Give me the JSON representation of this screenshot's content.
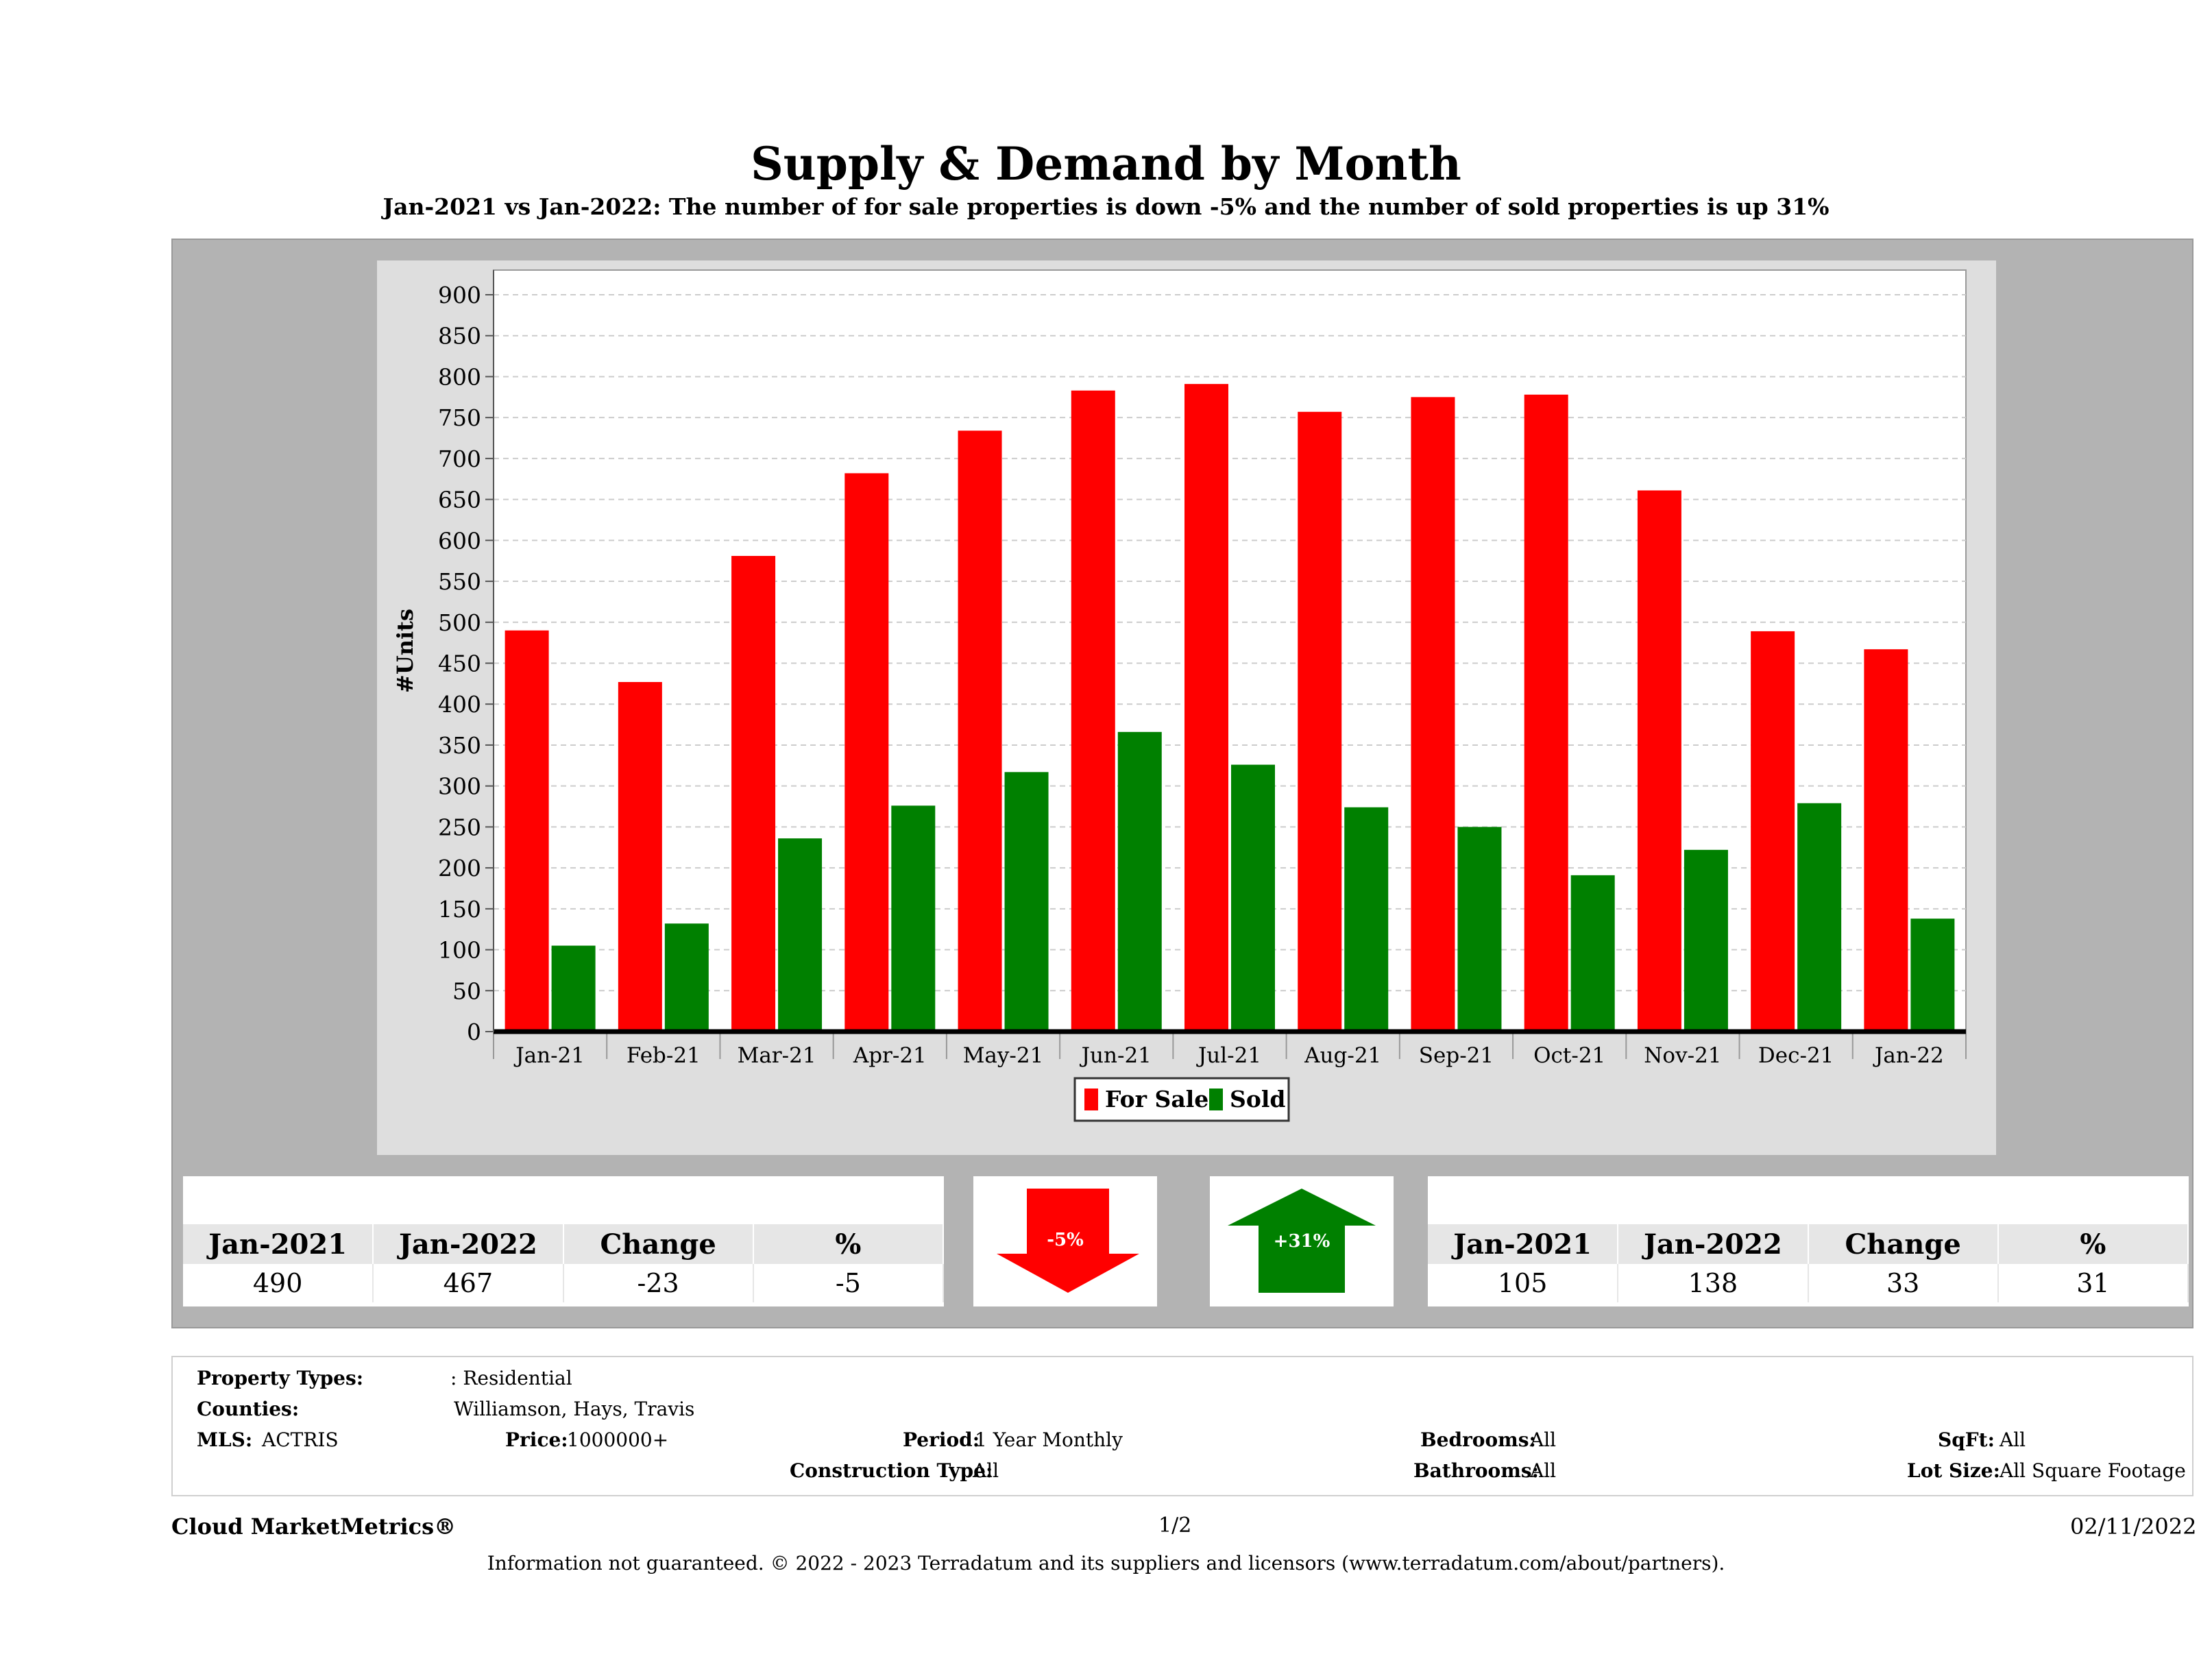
{
  "header": {
    "title": "Supply & Demand by Month",
    "subtitle": "Jan-2021 vs Jan-2022: The number of for sale properties is down -5% and the number of sold properties is up 31%"
  },
  "colors": {
    "for_sale": "#ff0000",
    "sold": "#008000",
    "panel": "#b3b3b3",
    "chart_bg": "#dedede"
  },
  "chart_data": {
    "type": "bar",
    "title": "Supply & Demand by Month",
    "ylabel": "#Units",
    "xlabel": "",
    "ylim": [
      0,
      900
    ],
    "yticks": [
      0,
      50,
      100,
      150,
      200,
      250,
      300,
      350,
      400,
      450,
      500,
      550,
      600,
      650,
      700,
      750,
      800,
      850,
      900
    ],
    "categories": [
      "Jan-21",
      "Feb-21",
      "Mar-21",
      "Apr-21",
      "May-21",
      "Jun-21",
      "Jul-21",
      "Aug-21",
      "Sep-21",
      "Oct-21",
      "Nov-21",
      "Dec-21",
      "Jan-22"
    ],
    "series": [
      {
        "name": "For Sale",
        "values": [
          490,
          427,
          581,
          682,
          734,
          783,
          791,
          757,
          775,
          778,
          661,
          489,
          467
        ]
      },
      {
        "name": "Sold",
        "values": [
          105,
          132,
          236,
          276,
          317,
          366,
          326,
          274,
          250,
          191,
          222,
          279,
          138
        ]
      }
    ],
    "legend": "bottom-center",
    "grid": true
  },
  "for_sale_stats": {
    "headers": [
      "Jan-2021",
      "Jan-2022",
      "Change",
      "%"
    ],
    "values": [
      "490",
      "467",
      "-23",
      "-5"
    ],
    "arrow_label": "-5%"
  },
  "sold_stats": {
    "headers": [
      "Jan-2021",
      "Jan-2022",
      "Change",
      "%"
    ],
    "values": [
      "105",
      "138",
      "33",
      "31"
    ],
    "arrow_label": "+31%"
  },
  "info": {
    "property_types_label": "Property Types:",
    "property_types_value": ": Residential",
    "counties_label": "Counties:",
    "counties_value": "Williamson, Hays, Travis",
    "mls_label": "MLS:",
    "mls_value": "ACTRIS",
    "price_label": "Price:",
    "price_value": "1000000+",
    "period_label": "Period:",
    "period_value": "1 Year Monthly",
    "construction_label": "Construction Type:",
    "construction_value": "All",
    "bedrooms_label": "Bedrooms:",
    "bedrooms_value": "All",
    "bathrooms_label": "Bathrooms:",
    "bathrooms_value": "All",
    "sqft_label": "SqFt:",
    "sqft_value": "All",
    "lotsize_label": "Lot Size:",
    "lotsize_value": "All Square Footage"
  },
  "footer": {
    "brand": "Cloud MarketMetrics®",
    "page": "1/2",
    "date": "02/11/2022",
    "disclaimer": "Information not guaranteed. © 2022 - 2023 Terradatum and its suppliers and licensors (www.terradatum.com/about/partners)."
  }
}
